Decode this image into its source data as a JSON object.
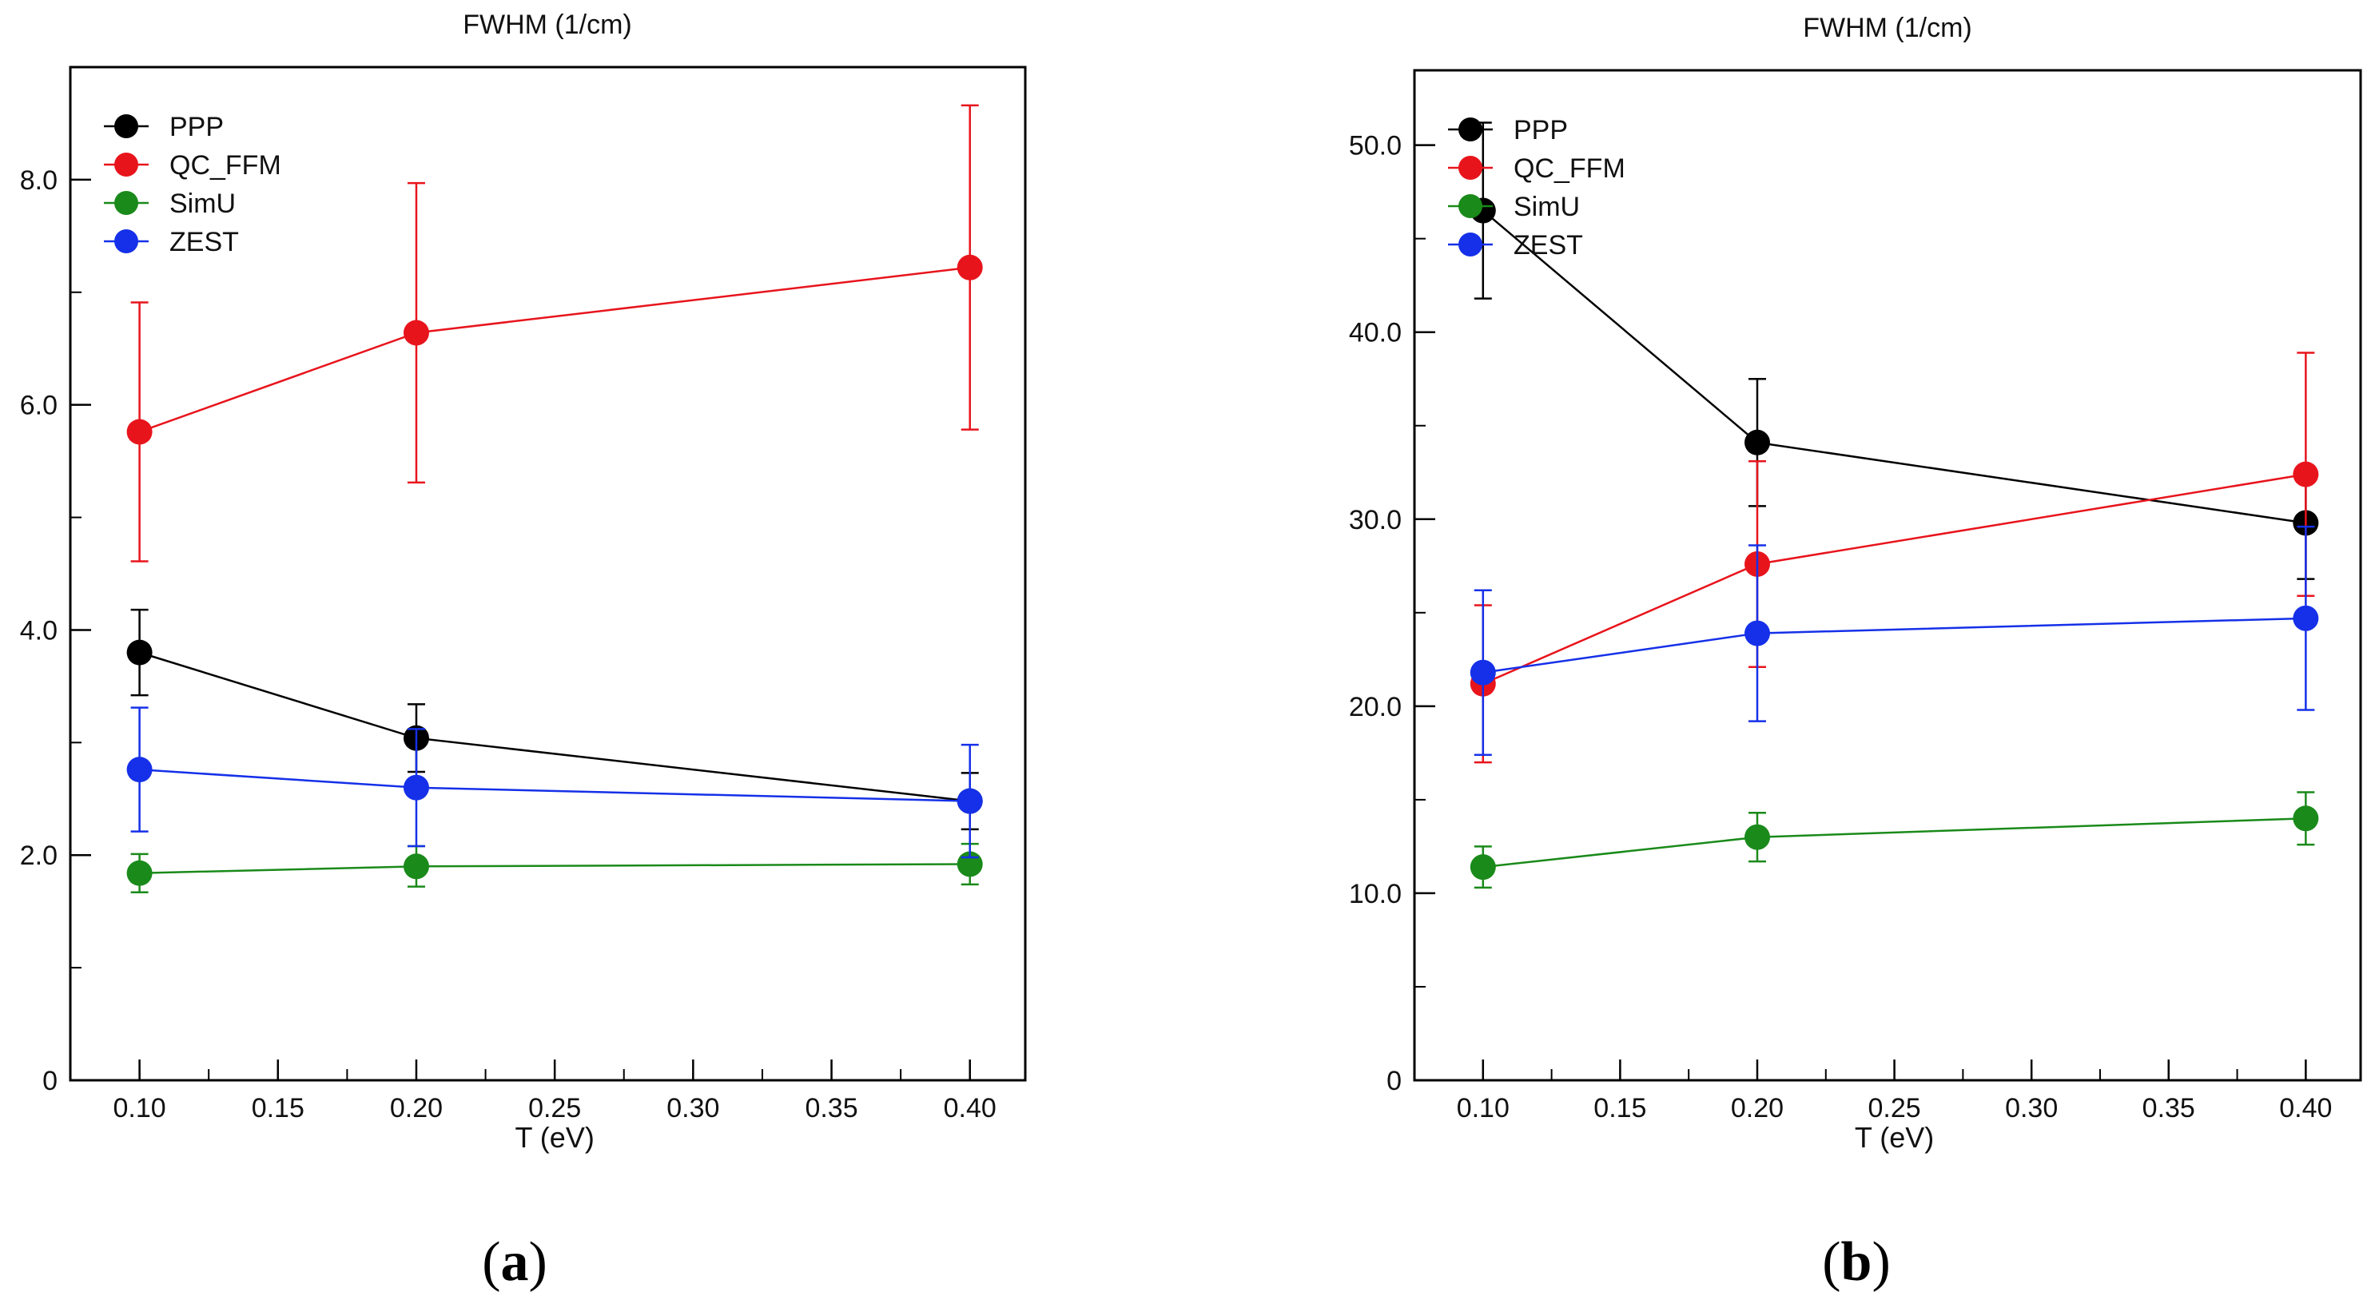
{
  "chart_data": [
    {
      "type": "line",
      "panel_label": {
        "open": "(",
        "letter": "a",
        "close": ")"
      },
      "title": "FWHM (1/cm)",
      "xlabel": "T (eV)",
      "ylabel": "",
      "xlim": [
        0.075,
        0.42
      ],
      "ylim": [
        0,
        9.0
      ],
      "x_ticks": [
        0.1,
        0.15,
        0.2,
        0.25,
        0.3,
        0.35,
        0.4
      ],
      "x_tick_labels": [
        "0.10",
        "0.15",
        "0.20",
        "0.25",
        "0.30",
        "0.35",
        "0.40"
      ],
      "y_ticks": [
        0,
        2,
        4,
        6,
        8
      ],
      "y_tick_labels": [
        "0",
        "2.0",
        "4.0",
        "6.0",
        "8.0"
      ],
      "y_minor_step": 1,
      "x_minor_step": 0.025,
      "grid": false,
      "legend_position": "top-left",
      "series": [
        {
          "name": "PPP",
          "color": "#000000",
          "x": [
            0.1,
            0.2,
            0.4
          ],
          "y": [
            3.8,
            3.04,
            2.48
          ],
          "err": [
            0.38,
            0.3,
            0.25
          ]
        },
        {
          "name": "QC_FFM",
          "color": "#e8141c",
          "x": [
            0.1,
            0.2,
            0.4
          ],
          "y": [
            5.76,
            6.64,
            7.22
          ],
          "err": [
            1.15,
            1.33,
            1.44
          ]
        },
        {
          "name": "SimU",
          "color": "#1a8a1a",
          "x": [
            0.1,
            0.2,
            0.4
          ],
          "y": [
            1.84,
            1.9,
            1.92
          ],
          "err": [
            0.17,
            0.18,
            0.18
          ]
        },
        {
          "name": "ZEST",
          "color": "#1530e8",
          "x": [
            0.1,
            0.2,
            0.4
          ],
          "y": [
            2.76,
            2.6,
            2.48
          ],
          "err": [
            0.55,
            0.52,
            0.5
          ]
        }
      ]
    },
    {
      "type": "line",
      "panel_label": {
        "open": "(",
        "letter": "b",
        "close": ")"
      },
      "title": "FWHM (1/cm)",
      "xlabel": "T (eV)",
      "ylabel": "",
      "xlim": [
        0.075,
        0.42
      ],
      "ylim": [
        0,
        54
      ],
      "x_ticks": [
        0.1,
        0.15,
        0.2,
        0.25,
        0.3,
        0.35,
        0.4
      ],
      "x_tick_labels": [
        "0.10",
        "0.15",
        "0.20",
        "0.25",
        "0.30",
        "0.35",
        "0.40"
      ],
      "y_ticks": [
        0,
        10,
        20,
        30,
        40,
        50
      ],
      "y_tick_labels": [
        "0",
        "10.0",
        "20.0",
        "30.0",
        "40.0",
        "50.0"
      ],
      "y_minor_step": 5,
      "x_minor_step": 0.025,
      "grid": false,
      "legend_position": "top-left",
      "series": [
        {
          "name": "PPP",
          "color": "#000000",
          "x": [
            0.1,
            0.2,
            0.4
          ],
          "y": [
            46.5,
            34.1,
            29.8
          ],
          "err": [
            4.7,
            3.4,
            3.0
          ]
        },
        {
          "name": "QC_FFM",
          "color": "#e8141c",
          "x": [
            0.1,
            0.2,
            0.4
          ],
          "y": [
            21.2,
            27.6,
            32.4
          ],
          "err": [
            4.2,
            5.5,
            6.5
          ]
        },
        {
          "name": "SimU",
          "color": "#1a8a1a",
          "x": [
            0.1,
            0.2,
            0.4
          ],
          "y": [
            11.4,
            13.0,
            14.0
          ],
          "err": [
            1.1,
            1.3,
            1.4
          ]
        },
        {
          "name": "ZEST",
          "color": "#1530e8",
          "x": [
            0.1,
            0.2,
            0.4
          ],
          "y": [
            21.8,
            23.9,
            24.7
          ],
          "err": [
            4.4,
            4.7,
            4.9
          ]
        }
      ]
    }
  ]
}
